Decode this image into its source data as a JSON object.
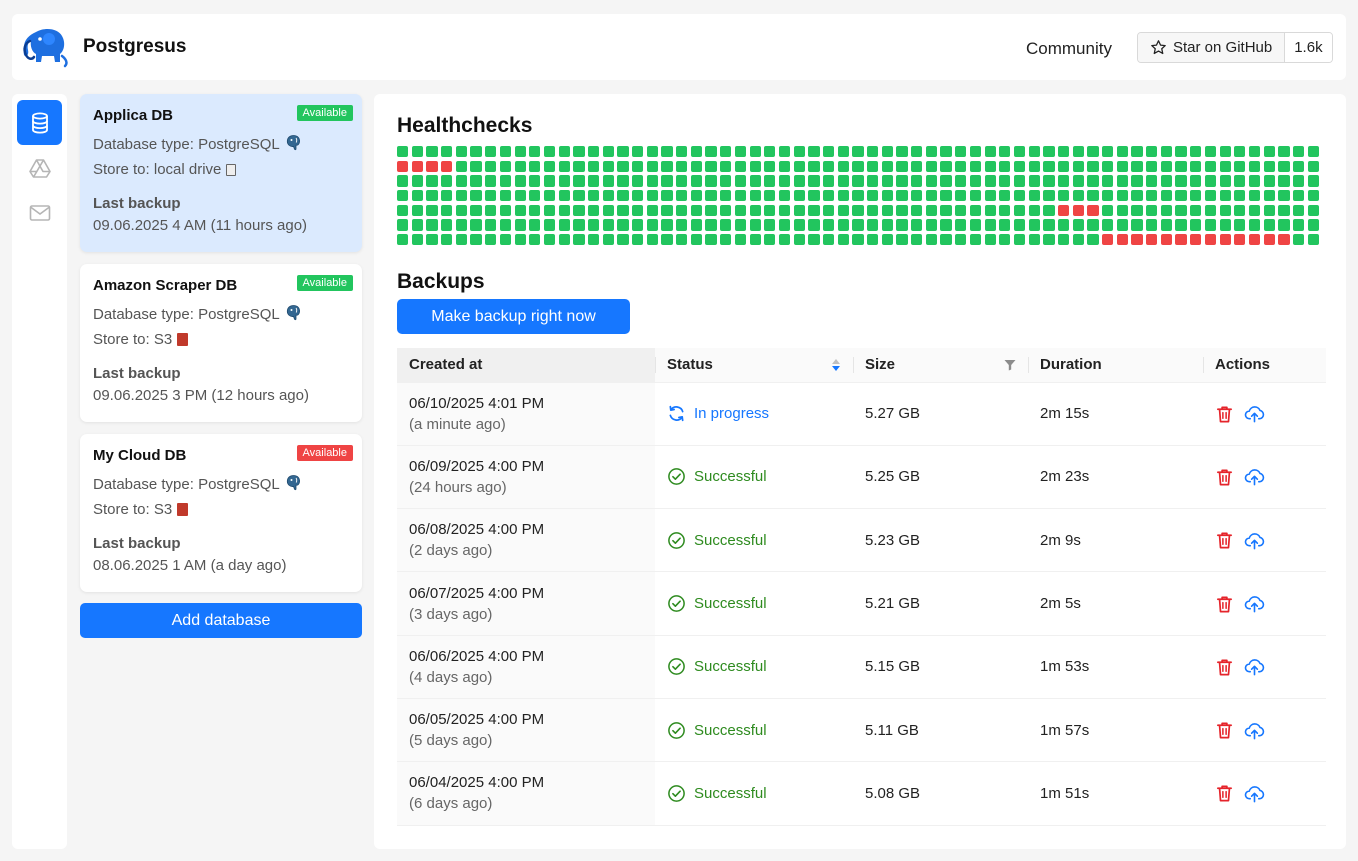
{
  "header": {
    "title": "Postgresus",
    "community_label": "Community",
    "github_star_label": "Star on GitHub",
    "github_star_count": "1.6k",
    "icons": {
      "logo": "elephant-logo",
      "star": "star-icon"
    }
  },
  "nav": {
    "items": [
      {
        "name": "databases",
        "icon": "database-icon",
        "active": true
      },
      {
        "name": "storages",
        "icon": "google-drive-icon",
        "active": false
      },
      {
        "name": "notifiers",
        "icon": "mail-icon",
        "active": false
      }
    ]
  },
  "databases": {
    "items": [
      {
        "name": "Applica DB",
        "status": "Available",
        "status_color": "#22c55e",
        "type_text": "Database type: PostgreSQL",
        "store_text": "Store to: local drive",
        "store_icon": "hard-drive-icon",
        "last_backup_label": "Last backup",
        "last_backup_value": "09.06.2025 4 AM (11 hours ago)",
        "selected": true
      },
      {
        "name": "Amazon Scraper DB",
        "status": "Available",
        "status_color": "#22c55e",
        "type_text": "Database type: PostgreSQL",
        "store_text": "Store to: S3",
        "store_icon": "s3-bucket-icon",
        "last_backup_label": "Last backup",
        "last_backup_value": "09.06.2025 3 PM (12 hours ago)",
        "selected": false
      },
      {
        "name": "My Cloud DB",
        "status": "Available",
        "status_color": "#ef4444",
        "type_text": "Database type: PostgreSQL",
        "store_text": "Store to: S3",
        "store_icon": "s3-bucket-icon",
        "last_backup_label": "Last backup",
        "last_backup_value": "08.06.2025 1 AM (a day ago)",
        "selected": false
      }
    ],
    "add_label": "Add database"
  },
  "healthchecks": {
    "title": "Healthchecks",
    "columns": 63,
    "rows": 7,
    "ok_color": "#22c55e",
    "fail_color": "#ef4444",
    "failed_cells": [
      [
        1,
        0
      ],
      [
        1,
        1
      ],
      [
        1,
        2
      ],
      [
        1,
        3
      ],
      [
        4,
        45
      ],
      [
        4,
        46
      ],
      [
        4,
        47
      ],
      [
        6,
        48
      ],
      [
        6,
        49
      ],
      [
        6,
        50
      ],
      [
        6,
        51
      ],
      [
        6,
        52
      ],
      [
        6,
        53
      ],
      [
        6,
        54
      ],
      [
        6,
        55
      ],
      [
        6,
        56
      ],
      [
        6,
        57
      ],
      [
        6,
        58
      ],
      [
        6,
        59
      ],
      [
        6,
        60
      ]
    ]
  },
  "backups": {
    "title": "Backups",
    "make_backup_label": "Make backup right now",
    "columns": {
      "created": "Created at",
      "status": "Status",
      "size": "Size",
      "duration": "Duration",
      "actions": "Actions"
    },
    "rows": [
      {
        "created": "06/10/2025 4:01 PM",
        "created_ago": "(a minute ago)",
        "status": "In progress",
        "status_kind": "progress",
        "size": "5.27 GB",
        "duration": "2m 15s"
      },
      {
        "created": "06/09/2025 4:00 PM",
        "created_ago": "(24 hours ago)",
        "status": "Successful",
        "status_kind": "success",
        "size": "5.25 GB",
        "duration": "2m 23s"
      },
      {
        "created": "06/08/2025 4:00 PM",
        "created_ago": "(2 days ago)",
        "status": "Successful",
        "status_kind": "success",
        "size": "5.23 GB",
        "duration": "2m 9s"
      },
      {
        "created": "06/07/2025 4:00 PM",
        "created_ago": "(3 days ago)",
        "status": "Successful",
        "status_kind": "success",
        "size": "5.21 GB",
        "duration": "2m 5s"
      },
      {
        "created": "06/06/2025 4:00 PM",
        "created_ago": "(4 days ago)",
        "status": "Successful",
        "status_kind": "success",
        "size": "5.15 GB",
        "duration": "1m 53s"
      },
      {
        "created": "06/05/2025 4:00 PM",
        "created_ago": "(5 days ago)",
        "status": "Successful",
        "status_kind": "success",
        "size": "5.11 GB",
        "duration": "1m 57s"
      },
      {
        "created": "06/04/2025 4:00 PM",
        "created_ago": "(6 days ago)",
        "status": "Successful",
        "status_kind": "success",
        "size": "5.08 GB",
        "duration": "1m 51s"
      }
    ],
    "icons": {
      "delete": "trash-icon",
      "restore": "cloud-upload-icon",
      "progress": "sync-icon",
      "success": "check-circle-icon",
      "sort": "sort-icon",
      "filter": "filter-icon"
    }
  }
}
